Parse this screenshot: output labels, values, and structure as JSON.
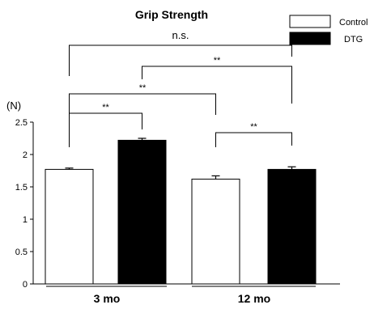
{
  "chart_data": {
    "type": "bar",
    "title": "Grip Strength",
    "ylabel": "(N)",
    "xlabel": "",
    "ylim": [
      0,
      2.5
    ],
    "yticks": [
      0,
      0.5,
      1,
      1.5,
      2,
      2.5
    ],
    "ytick_labels": [
      "0",
      "0.5",
      "1",
      "1.5",
      "2",
      "2.5"
    ],
    "categories": [
      "3 mo",
      "12 mo"
    ],
    "series": [
      {
        "name": "Control",
        "color": "#ffffff",
        "values": [
          1.77,
          1.62
        ],
        "errors": [
          0.02,
          0.05
        ]
      },
      {
        "name": "DTG",
        "color": "#000000",
        "values": [
          2.22,
          1.77
        ],
        "errors": [
          0.03,
          0.04
        ]
      }
    ],
    "legend_position": "top-right",
    "grid": false,
    "annotations": [
      {
        "label": "n.s.",
        "from": "3 mo Control",
        "to": "12 mo DTG"
      },
      {
        "label": "**",
        "from": "3 mo DTG",
        "to": "12 mo DTG"
      },
      {
        "label": "**",
        "from": "3 mo Control",
        "to": "12 mo Control"
      },
      {
        "label": "**",
        "from": "3 mo Control",
        "to": "3 mo DTG"
      },
      {
        "label": "**",
        "from": "12 mo Control",
        "to": "12 mo DTG"
      }
    ]
  }
}
